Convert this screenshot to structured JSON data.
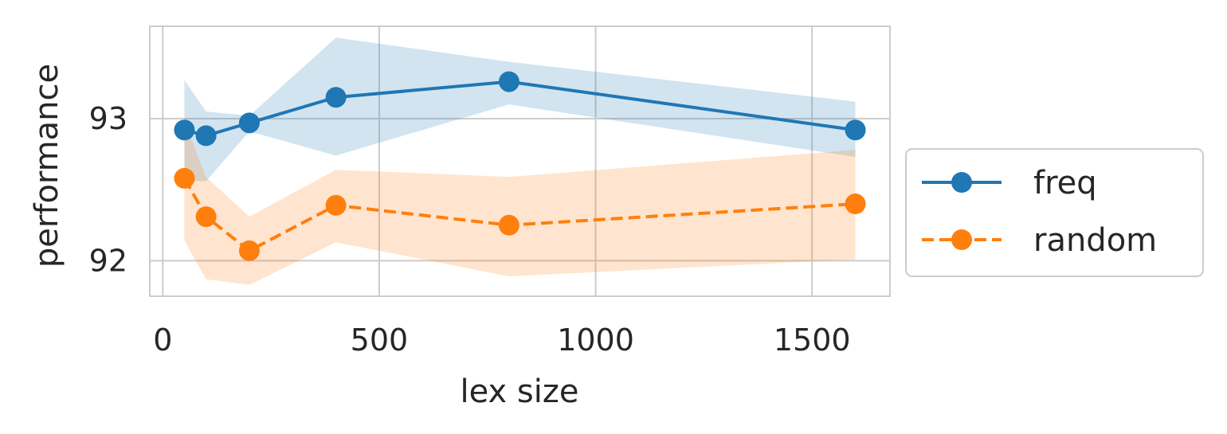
{
  "chart_data": {
    "type": "line",
    "xlabel": "lex size",
    "ylabel": "performance",
    "xlim": [
      -30,
      1680
    ],
    "ylim": [
      91.75,
      93.65
    ],
    "xticks": [
      0,
      500,
      1000,
      1500
    ],
    "yticks": [
      92,
      93
    ],
    "grid": true,
    "legend_position": "right",
    "series": [
      {
        "name": "freq",
        "color": "#1f77b4",
        "line_style": "solid",
        "marker": "circle",
        "x": [
          50,
          100,
          200,
          400,
          800,
          1600
        ],
        "y": [
          92.92,
          92.88,
          92.97,
          93.15,
          93.26,
          92.92
        ],
        "lower": [
          92.56,
          92.56,
          92.91,
          92.74,
          93.1,
          92.73
        ],
        "upper": [
          93.27,
          93.05,
          93.02,
          93.57,
          93.4,
          93.12
        ]
      },
      {
        "name": "random",
        "color": "#ff7f0e",
        "line_style": "dashed",
        "marker": "circle",
        "x": [
          50,
          100,
          200,
          400,
          800,
          1600
        ],
        "y": [
          92.58,
          92.31,
          92.07,
          92.39,
          92.25,
          92.4
        ],
        "lower": [
          92.14,
          91.87,
          91.83,
          92.13,
          91.89,
          92.01
        ],
        "upper": [
          92.98,
          92.59,
          92.31,
          92.64,
          92.59,
          92.78
        ]
      }
    ]
  }
}
